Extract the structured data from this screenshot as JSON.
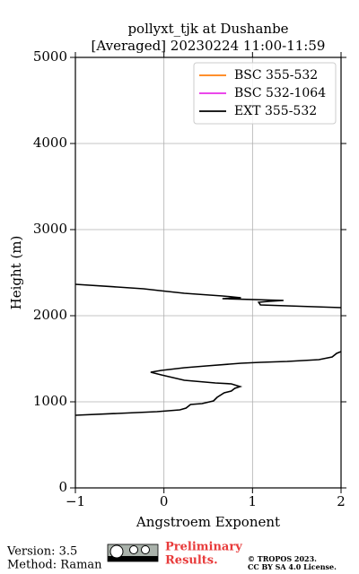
{
  "chart_data": {
    "type": "line",
    "title": "pollyxt_tjk at Dushanbe",
    "subtitle": "[Averaged] 20230224 11:00-11:59",
    "x_label": "Angstroem Exponent",
    "y_label": "Height (m)",
    "xlim": [
      -1,
      2
    ],
    "xticks": [
      {
        "value": -1,
        "label": "−1"
      },
      0,
      1,
      2
    ],
    "ylim": [
      0,
      5000
    ],
    "yticks": [
      0,
      1000,
      2000,
      3000,
      4000,
      5000
    ],
    "grid": true,
    "legend": "upper right",
    "series": [
      {
        "name": "BSC 355-532",
        "color": "#ff7f0e",
        "values": [],
        "heights": []
      },
      {
        "name": "BSC 532-1064",
        "color": "#e82ee8",
        "values": [],
        "heights": []
      },
      {
        "name": "EXT 355-532",
        "color": "#000000",
        "values": [
          -1,
          -0.53,
          -0.08,
          0.18,
          0.25,
          0.3,
          0.43,
          0.56,
          0.6,
          0.68,
          0.76,
          0.8,
          0.86,
          0.76,
          0.58,
          0.23,
          -0.03,
          -0.15,
          -0.03,
          0.23,
          0.48,
          0.87,
          1.09,
          1.39,
          1.75,
          1.9,
          1.95,
          2.0,
          null,
          2.0,
          1.09,
          1.07,
          1.19,
          1.35,
          0.66,
          0.87,
          0.66,
          0.23,
          -0.05,
          -0.23,
          -0.53,
          -1
        ],
        "heights": [
          844,
          865,
          885,
          906,
          927,
          969,
          979,
          1010,
          1052,
          1104,
          1125,
          1156,
          1177,
          1208,
          1219,
          1250,
          1313,
          1344,
          1365,
          1396,
          1417,
          1448,
          1458,
          1469,
          1490,
          1521,
          1563,
          1583,
          null,
          2094,
          2125,
          2156,
          2167,
          2177,
          2198,
          2208,
          2229,
          2260,
          2292,
          2313,
          2333,
          2365
        ]
      }
    ]
  },
  "footer": {
    "version": "Version: 3.5",
    "method": "Method: Raman",
    "preliminary": "Preliminary",
    "results": "Results.",
    "copyright": "© TROPOS 2023.",
    "license": "CC BY SA 4.0 License."
  }
}
